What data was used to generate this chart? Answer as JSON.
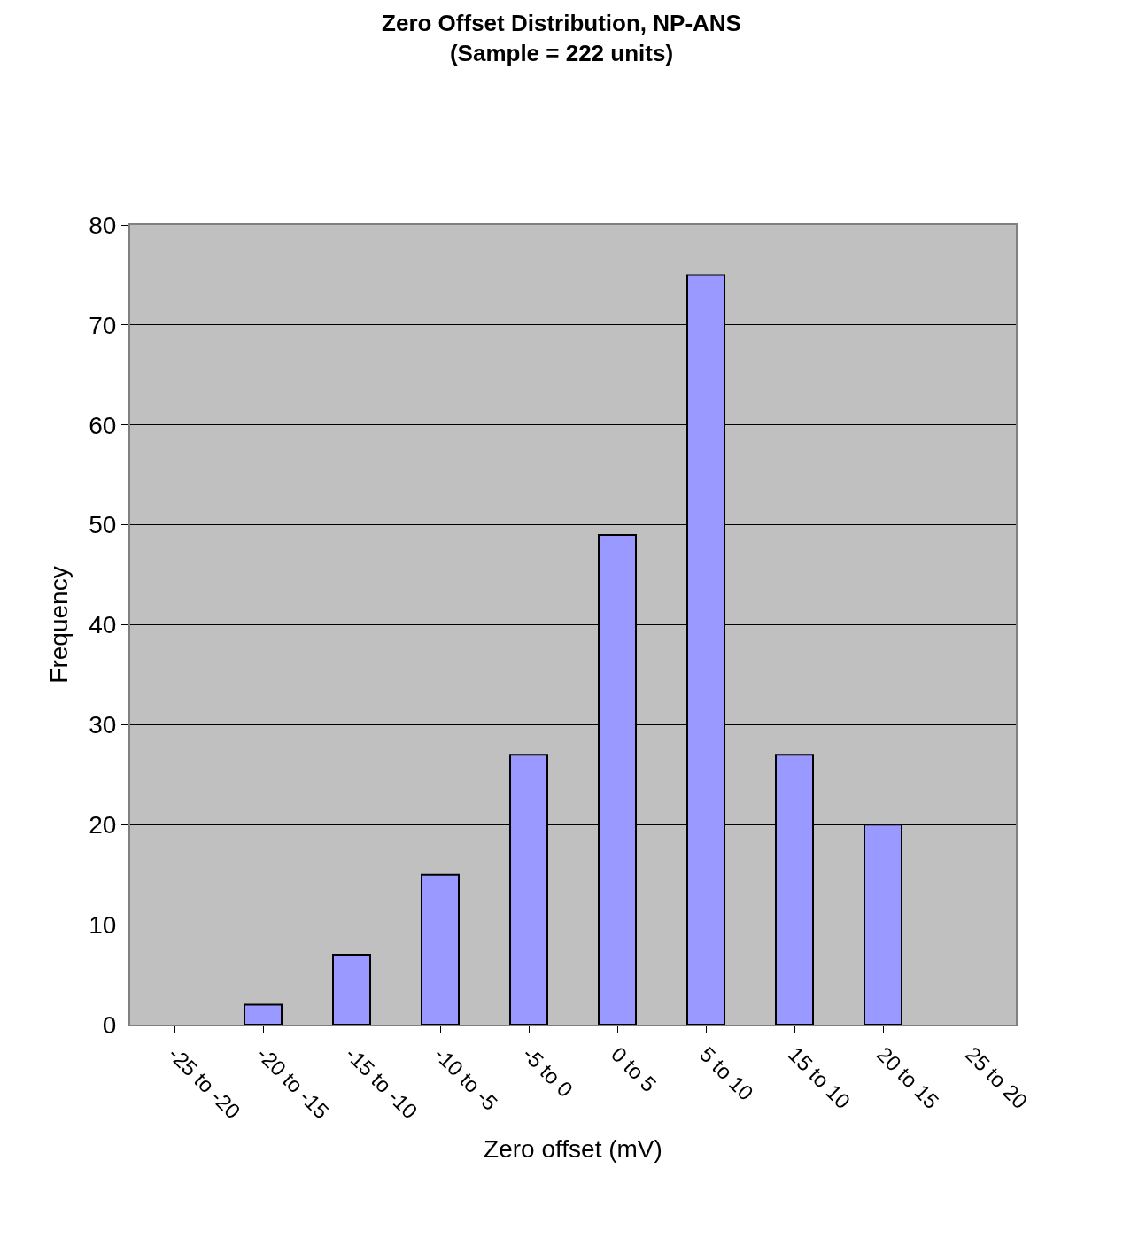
{
  "chart_data": {
    "type": "bar",
    "title": "Zero Offset Distribution, NP-ANS\n(Sample = 222 units)",
    "xlabel": "Zero offset (mV)",
    "ylabel": "Frequency",
    "categories": [
      "-25 to -20",
      "-20 to -15",
      "-15 to -10",
      "-10 to -5",
      "-5 to 0",
      "0 to 5",
      "5 to 10",
      "15 to 10",
      "20 to 15",
      "25 to 20"
    ],
    "values": [
      0,
      2,
      7,
      15,
      27,
      49,
      75,
      27,
      20,
      0
    ],
    "color": "#9999ff",
    "ylim": [
      0,
      80
    ],
    "yticks": [
      0,
      10,
      20,
      30,
      40,
      50,
      60,
      70,
      80
    ],
    "grid": "y",
    "legend": false
  }
}
